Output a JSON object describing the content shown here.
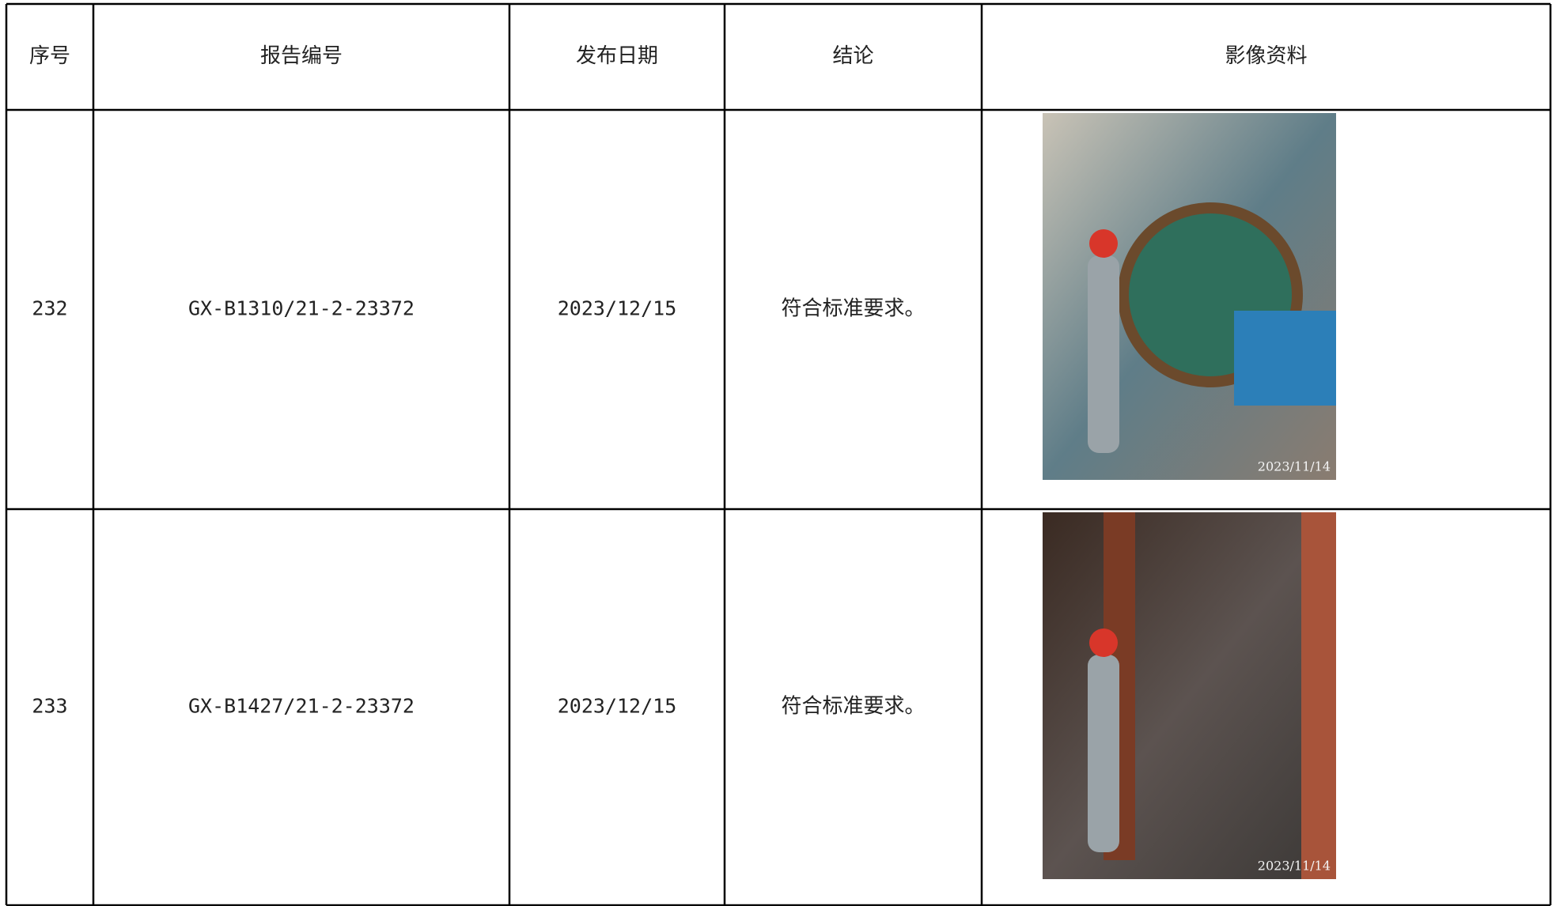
{
  "table": {
    "header": [
      "序号",
      "报告编号",
      "发布日期",
      "结论",
      "影像资料"
    ],
    "rows": [
      {
        "no": "232",
        "report": "GX-B1310/21-2-23372",
        "date": "2023/12/15",
        "conclusion": "符合标准要求。",
        "photo_stamp": "2023/11/14"
      },
      {
        "no": "233",
        "report": "GX-B1427/21-2-23372",
        "date": "2023/12/15",
        "conclusion": "符合标准要求。",
        "photo_stamp": "2023/11/14"
      }
    ]
  }
}
